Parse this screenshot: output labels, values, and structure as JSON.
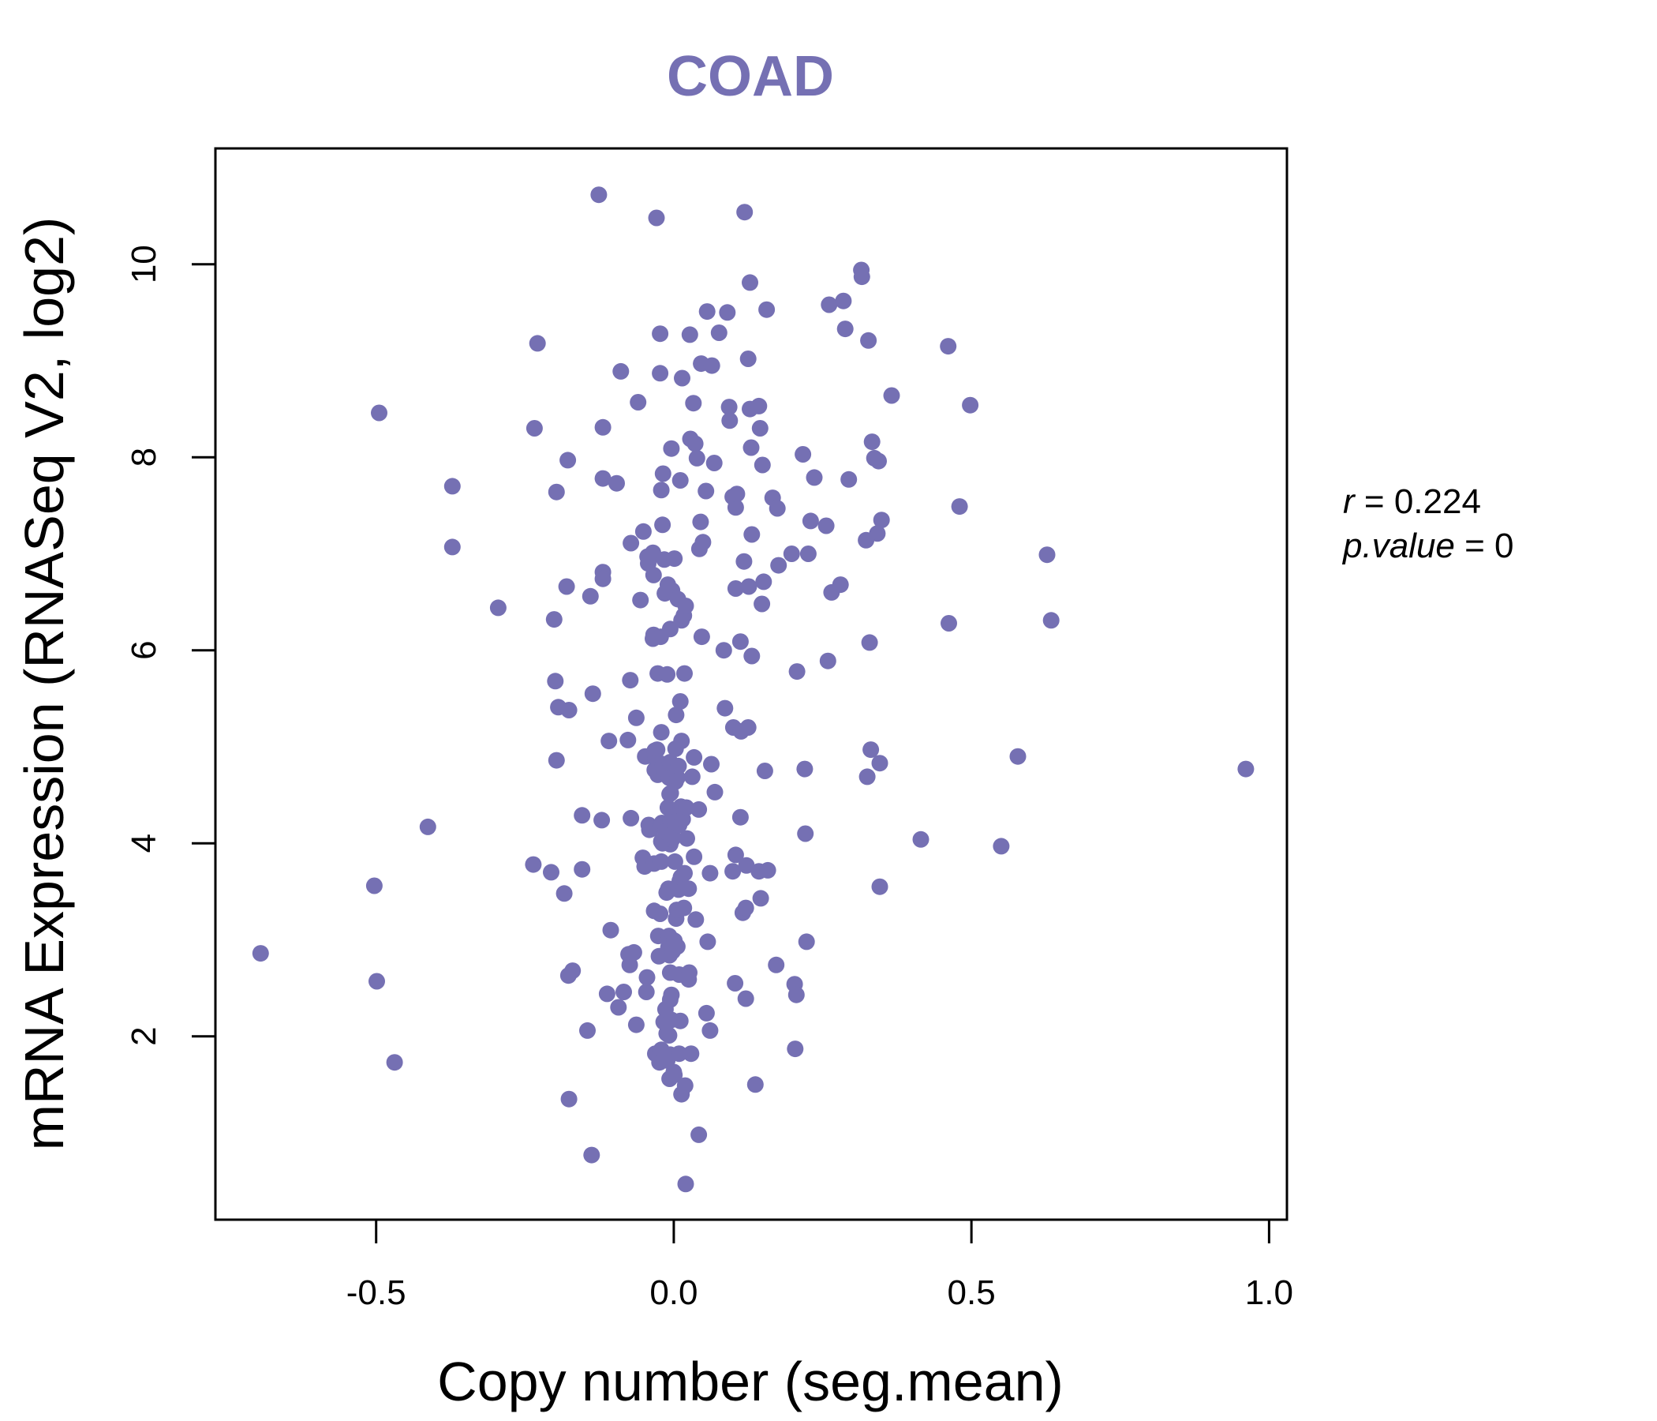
{
  "chart_data": {
    "type": "scatter",
    "title": "COAD",
    "xlabel": "Copy number (seg.mean)",
    "ylabel": "mRNA Expression (RNASeq V2, log2)",
    "xlim": [
      -0.77,
      1.03
    ],
    "ylim": [
      0.1,
      11.2
    ],
    "x_ticks": [
      -0.5,
      0.0,
      0.5,
      1.0
    ],
    "x_tick_labels": [
      "-0.5",
      "0.0",
      "0.5",
      "1.0"
    ],
    "y_ticks": [
      2,
      4,
      6,
      8,
      10
    ],
    "y_tick_labels": [
      "2",
      "4",
      "6",
      "8",
      "10"
    ],
    "grid": false,
    "legend": "none",
    "stats": {
      "r_symbol": "r",
      "r_value": "0.224",
      "p_symbol": "p.value",
      "p_value": "0"
    },
    "colors": {
      "point": "#7570b3",
      "title": "#7570b3",
      "axis": "#000000"
    },
    "points": [
      [
        -0.694,
        2.86
      ],
      [
        -0.503,
        3.56
      ],
      [
        -0.499,
        2.57
      ],
      [
        -0.495,
        8.46
      ],
      [
        -0.469,
        1.73
      ],
      [
        -0.413,
        4.17
      ],
      [
        -0.372,
        7.7
      ],
      [
        -0.372,
        7.07
      ],
      [
        -0.295,
        6.44
      ],
      [
        -0.236,
        3.78
      ],
      [
        -0.234,
        8.3
      ],
      [
        -0.229,
        9.18
      ],
      [
        -0.206,
        3.7
      ],
      [
        -0.201,
        6.32
      ],
      [
        -0.199,
        5.68
      ],
      [
        -0.197,
        4.86
      ],
      [
        -0.197,
        7.64
      ],
      [
        -0.194,
        5.41
      ],
      [
        -0.184,
        3.48
      ],
      [
        -0.18,
        6.66
      ],
      [
        -0.178,
        7.97
      ],
      [
        -0.177,
        2.63
      ],
      [
        -0.176,
        1.35
      ],
      [
        -0.176,
        5.38
      ],
      [
        -0.17,
        2.68
      ],
      [
        -0.154,
        3.73
      ],
      [
        -0.154,
        4.29
      ],
      [
        -0.145,
        2.06
      ],
      [
        -0.14,
        6.56
      ],
      [
        -0.138,
        0.77
      ],
      [
        -0.136,
        5.55
      ],
      [
        -0.126,
        10.72
      ],
      [
        -0.121,
        4.24
      ],
      [
        -0.119,
        6.81
      ],
      [
        -0.119,
        6.74
      ],
      [
        -0.119,
        7.78
      ],
      [
        -0.119,
        8.31
      ],
      [
        -0.112,
        2.44
      ],
      [
        -0.109,
        5.06
      ],
      [
        -0.106,
        3.1
      ],
      [
        -0.096,
        7.73
      ],
      [
        -0.093,
        2.3
      ],
      [
        -0.089,
        8.89
      ],
      [
        -0.084,
        2.46
      ],
      [
        -0.077,
        5.07
      ],
      [
        -0.076,
        2.85
      ],
      [
        -0.074,
        2.74
      ],
      [
        -0.073,
        5.69
      ],
      [
        -0.072,
        4.26
      ],
      [
        -0.072,
        7.11
      ],
      [
        -0.067,
        2.87
      ],
      [
        -0.063,
        5.3
      ],
      [
        -0.063,
        2.12
      ],
      [
        -0.06,
        8.57
      ],
      [
        -0.056,
        6.52
      ],
      [
        -0.052,
        3.85
      ],
      [
        -0.051,
        7.23
      ],
      [
        -0.049,
        3.76
      ],
      [
        -0.048,
        4.9
      ],
      [
        -0.046,
        2.46
      ],
      [
        -0.045,
        2.61
      ],
      [
        -0.044,
        6.97
      ],
      [
        -0.043,
        6.9
      ],
      [
        -0.042,
        4.19
      ],
      [
        -0.041,
        4.14
      ],
      [
        -0.039,
        6.97
      ],
      [
        -0.038,
        4.15
      ],
      [
        -0.035,
        7.01
      ],
      [
        -0.035,
        6.12
      ],
      [
        -0.034,
        6.78
      ],
      [
        -0.034,
        6.16
      ],
      [
        -0.033,
        3.3
      ],
      [
        -0.033,
        3.79
      ],
      [
        -0.032,
        4.96
      ],
      [
        -0.032,
        4.76
      ],
      [
        -0.031,
        1.82
      ],
      [
        -0.031,
        4.88
      ],
      [
        -0.029,
        10.48
      ],
      [
        -0.028,
        4.97
      ],
      [
        -0.027,
        5.76
      ],
      [
        -0.027,
        4.71
      ],
      [
        -0.026,
        3.04
      ],
      [
        -0.025,
        4.83
      ],
      [
        -0.025,
        2.83
      ],
      [
        -0.024,
        1.73
      ],
      [
        -0.023,
        8.87
      ],
      [
        -0.023,
        9.28
      ],
      [
        -0.023,
        3.27
      ],
      [
        -0.022,
        4.19
      ],
      [
        -0.022,
        6.14
      ],
      [
        -0.021,
        1.86
      ],
      [
        -0.021,
        5.15
      ],
      [
        -0.021,
        4.02
      ],
      [
        -0.021,
        7.66
      ],
      [
        -0.021,
        3.81
      ],
      [
        -0.02,
        4.21
      ],
      [
        -0.019,
        4.0
      ],
      [
        -0.019,
        7.3
      ],
      [
        -0.018,
        4.82
      ],
      [
        -0.018,
        7.83
      ],
      [
        -0.017,
        2.15
      ],
      [
        -0.016,
        6.94
      ],
      [
        -0.016,
        4.73
      ],
      [
        -0.016,
        1.78
      ],
      [
        -0.015,
        6.59
      ],
      [
        -0.014,
        4.12
      ],
      [
        -0.014,
        2.28
      ],
      [
        -0.013,
        4.12
      ],
      [
        -0.012,
        3.49
      ],
      [
        -0.012,
        2.03
      ],
      [
        -0.011,
        5.75
      ],
      [
        -0.011,
        1.75
      ],
      [
        -0.01,
        4.76
      ],
      [
        -0.01,
        4.37
      ],
      [
        -0.01,
        6.68
      ],
      [
        -0.009,
        2.92
      ],
      [
        -0.009,
        3.53
      ],
      [
        -0.008,
        2.01
      ],
      [
        -0.008,
        4.68
      ],
      [
        -0.008,
        3.04
      ],
      [
        -0.007,
        1.56
      ],
      [
        -0.007,
        2.84
      ],
      [
        -0.007,
        4.51
      ],
      [
        -0.006,
        3.99
      ],
      [
        -0.006,
        2.38
      ],
      [
        -0.006,
        6.22
      ],
      [
        -0.006,
        1.81
      ],
      [
        -0.006,
        4.84
      ],
      [
        -0.006,
        2.66
      ],
      [
        -0.005,
        4.52
      ],
      [
        -0.005,
        4.24
      ],
      [
        -0.004,
        2.17
      ],
      [
        -0.004,
        2.43
      ],
      [
        -0.004,
        8.09
      ],
      [
        -0.003,
        4.04
      ],
      [
        -0.003,
        6.62
      ],
      [
        -0.002,
        4.07
      ],
      [
        -0.002,
        3.0
      ],
      [
        -0.002,
        2.88
      ],
      [
        -0.001,
        4.27
      ],
      [
        0.0,
        1.63
      ],
      [
        0.001,
        6.95
      ],
      [
        0.001,
        2.99
      ],
      [
        0.001,
        1.6
      ],
      [
        0.002,
        3.81
      ],
      [
        0.002,
        4.22
      ],
      [
        0.003,
        4.64
      ],
      [
        0.003,
        4.98
      ],
      [
        0.004,
        5.33
      ],
      [
        0.004,
        3.22
      ],
      [
        0.005,
        3.31
      ],
      [
        0.006,
        2.93
      ],
      [
        0.006,
        4.68
      ],
      [
        0.007,
        6.53
      ],
      [
        0.008,
        3.52
      ],
      [
        0.008,
        4.8
      ],
      [
        0.009,
        2.64
      ],
      [
        0.009,
        1.82
      ],
      [
        0.009,
        4.19
      ],
      [
        0.01,
        3.61
      ],
      [
        0.011,
        5.47
      ],
      [
        0.011,
        7.76
      ],
      [
        0.011,
        2.16
      ],
      [
        0.012,
        4.38
      ],
      [
        0.012,
        3.65
      ],
      [
        0.013,
        1.4
      ],
      [
        0.013,
        6.31
      ],
      [
        0.013,
        5.06
      ],
      [
        0.014,
        8.82
      ],
      [
        0.015,
        4.25
      ],
      [
        0.017,
        3.33
      ],
      [
        0.017,
        6.36
      ],
      [
        0.018,
        5.76
      ],
      [
        0.018,
        3.69
      ],
      [
        0.019,
        1.49
      ],
      [
        0.02,
        0.47
      ],
      [
        0.02,
        6.46
      ],
      [
        0.021,
        4.37
      ],
      [
        0.022,
        4.05
      ],
      [
        0.025,
        2.59
      ],
      [
        0.025,
        3.53
      ],
      [
        0.026,
        2.66
      ],
      [
        0.027,
        9.27
      ],
      [
        0.028,
        8.19
      ],
      [
        0.029,
        1.82
      ],
      [
        0.031,
        4.69
      ],
      [
        0.033,
        8.56
      ],
      [
        0.034,
        3.86
      ],
      [
        0.034,
        4.89
      ],
      [
        0.036,
        8.14
      ],
      [
        0.037,
        3.21
      ],
      [
        0.039,
        7.99
      ],
      [
        0.042,
        4.35
      ],
      [
        0.042,
        0.98
      ],
      [
        0.043,
        7.05
      ],
      [
        0.045,
        7.33
      ],
      [
        0.046,
        8.97
      ],
      [
        0.047,
        6.14
      ],
      [
        0.049,
        7.12
      ],
      [
        0.054,
        7.65
      ],
      [
        0.055,
        2.24
      ],
      [
        0.056,
        9.51
      ],
      [
        0.057,
        2.98
      ],
      [
        0.061,
        3.69
      ],
      [
        0.061,
        2.06
      ],
      [
        0.063,
        4.82
      ],
      [
        0.064,
        8.95
      ],
      [
        0.068,
        7.94
      ],
      [
        0.069,
        4.53
      ],
      [
        0.076,
        9.29
      ],
      [
        0.084,
        6.0
      ],
      [
        0.086,
        5.4
      ],
      [
        0.09,
        9.5
      ],
      [
        0.093,
        8.52
      ],
      [
        0.094,
        8.38
      ],
      [
        0.099,
        7.59
      ],
      [
        0.099,
        3.71
      ],
      [
        0.1,
        5.2
      ],
      [
        0.103,
        2.55
      ],
      [
        0.104,
        7.48
      ],
      [
        0.104,
        6.64
      ],
      [
        0.104,
        3.88
      ],
      [
        0.106,
        7.62
      ],
      [
        0.112,
        4.27
      ],
      [
        0.112,
        6.09
      ],
      [
        0.113,
        5.16
      ],
      [
        0.116,
        3.28
      ],
      [
        0.118,
        6.92
      ],
      [
        0.119,
        10.54
      ],
      [
        0.121,
        3.33
      ],
      [
        0.121,
        2.39
      ],
      [
        0.122,
        3.77
      ],
      [
        0.125,
        9.02
      ],
      [
        0.125,
        5.2
      ],
      [
        0.126,
        6.66
      ],
      [
        0.128,
        8.5
      ],
      [
        0.128,
        9.81
      ],
      [
        0.13,
        8.1
      ],
      [
        0.131,
        7.2
      ],
      [
        0.131,
        5.94
      ],
      [
        0.137,
        1.5
      ],
      [
        0.143,
        3.71
      ],
      [
        0.143,
        8.53
      ],
      [
        0.145,
        8.3
      ],
      [
        0.146,
        3.43
      ],
      [
        0.148,
        6.48
      ],
      [
        0.149,
        7.92
      ],
      [
        0.151,
        6.71
      ],
      [
        0.153,
        4.75
      ],
      [
        0.156,
        9.53
      ],
      [
        0.158,
        3.72
      ],
      [
        0.166,
        7.58
      ],
      [
        0.172,
        2.74
      ],
      [
        0.174,
        7.47
      ],
      [
        0.176,
        6.88
      ],
      [
        0.198,
        7.0
      ],
      [
        0.203,
        2.54
      ],
      [
        0.204,
        1.87
      ],
      [
        0.206,
        2.43
      ],
      [
        0.207,
        5.78
      ],
      [
        0.217,
        8.03
      ],
      [
        0.22,
        4.77
      ],
      [
        0.221,
        4.1
      ],
      [
        0.223,
        2.98
      ],
      [
        0.226,
        7.0
      ],
      [
        0.23,
        7.34
      ],
      [
        0.236,
        7.79
      ],
      [
        0.256,
        7.29
      ],
      [
        0.259,
        5.89
      ],
      [
        0.261,
        9.58
      ],
      [
        0.265,
        6.6
      ],
      [
        0.28,
        6.68
      ],
      [
        0.285,
        9.62
      ],
      [
        0.288,
        9.33
      ],
      [
        0.294,
        7.77
      ],
      [
        0.315,
        9.94
      ],
      [
        0.316,
        9.87
      ],
      [
        0.323,
        7.14
      ],
      [
        0.325,
        4.69
      ],
      [
        0.327,
        9.21
      ],
      [
        0.329,
        6.08
      ],
      [
        0.331,
        4.97
      ],
      [
        0.333,
        8.16
      ],
      [
        0.337,
        7.99
      ],
      [
        0.342,
        7.21
      ],
      [
        0.344,
        7.96
      ],
      [
        0.346,
        4.83
      ],
      [
        0.346,
        3.55
      ],
      [
        0.349,
        7.35
      ],
      [
        0.366,
        8.64
      ],
      [
        0.415,
        4.04
      ],
      [
        0.461,
        9.15
      ],
      [
        0.462,
        6.28
      ],
      [
        0.48,
        7.49
      ],
      [
        0.498,
        8.54
      ],
      [
        0.55,
        3.97
      ],
      [
        0.578,
        4.9
      ],
      [
        0.627,
        6.99
      ],
      [
        0.634,
        6.31
      ],
      [
        0.961,
        4.77
      ]
    ]
  }
}
